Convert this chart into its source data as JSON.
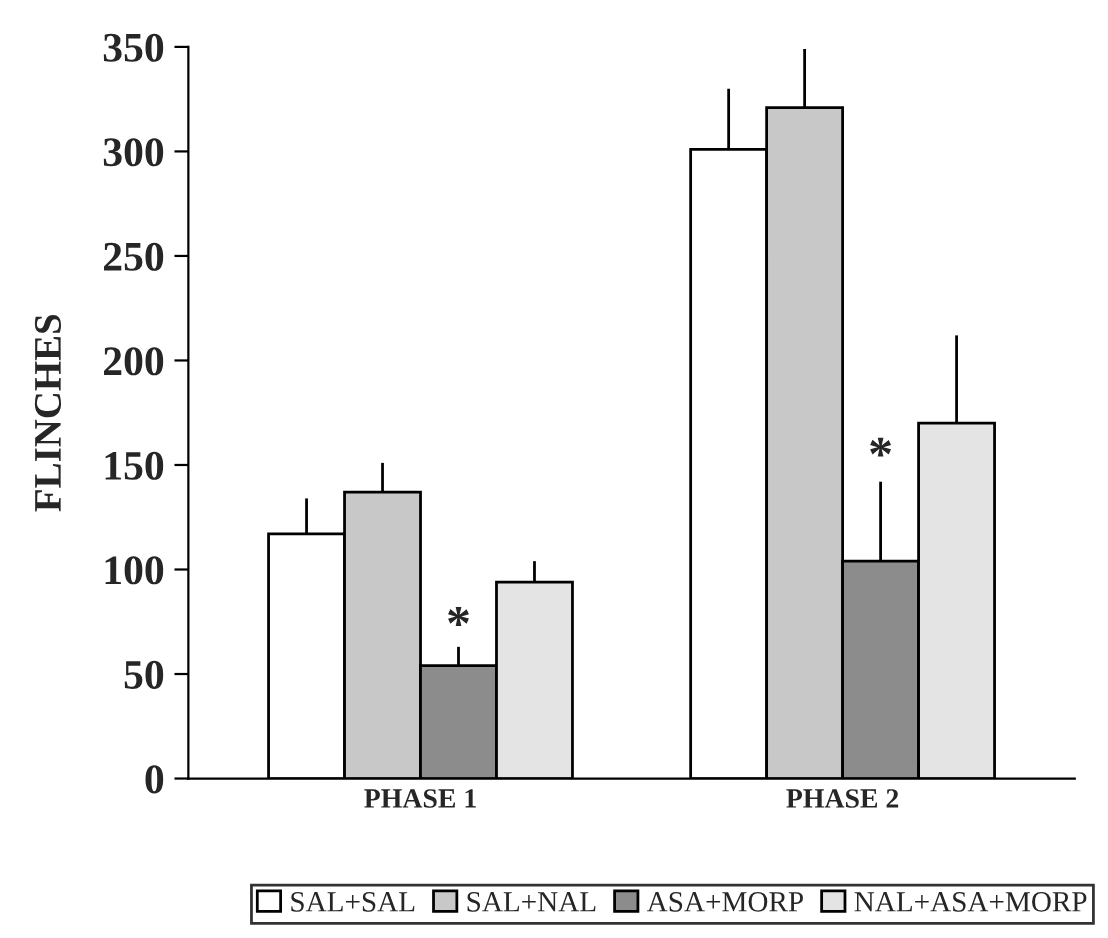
{
  "chart_data": {
    "type": "bar",
    "ylabel": "FLINCHES",
    "categories": [
      "PHASE 1",
      "PHASE 2"
    ],
    "series": [
      {
        "name": "SAL+SAL",
        "color": "#ffffff",
        "values": [
          117,
          301
        ],
        "errors": [
          [
            117,
            134
          ],
          [
            301,
            330
          ]
        ]
      },
      {
        "name": "SAL+NAL",
        "color": "#c8c8c8",
        "values": [
          137,
          321
        ],
        "errors": [
          [
            137,
            151
          ],
          [
            321,
            349
          ]
        ]
      },
      {
        "name": "ASA+MORP",
        "color": "#8c8c8c",
        "values": [
          54,
          104
        ],
        "errors": [
          [
            54,
            63
          ],
          [
            104,
            142
          ]
        ]
      },
      {
        "name": "NAL+ASA+MORP",
        "color": "#e4e4e4",
        "values": [
          94,
          170
        ],
        "errors": [
          [
            94,
            104
          ],
          [
            170,
            212
          ]
        ]
      }
    ],
    "annotations": [
      {
        "text": "*",
        "x": "PHASE 1",
        "y": 72
      },
      {
        "text": "*",
        "x": "PHASE 2",
        "y": 153
      }
    ],
    "ylim": [
      0,
      350
    ],
    "yticks": [
      0,
      50,
      100,
      150,
      200,
      250,
      300,
      350
    ],
    "grid": false,
    "legend": "bottom"
  }
}
